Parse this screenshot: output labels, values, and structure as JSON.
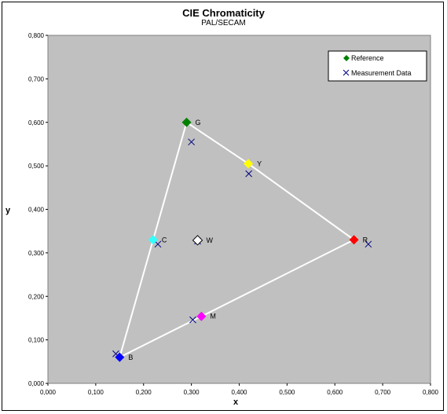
{
  "chart_data": {
    "type": "scatter",
    "title": "CIE Chromaticity",
    "subtitle": "PAL/SECAM",
    "xlabel": "x",
    "ylabel": "y",
    "xlim": [
      0,
      0.8
    ],
    "ylim": [
      0,
      0.8
    ],
    "xticks": [
      "0,000",
      "0,100",
      "0,200",
      "0,300",
      "0,400",
      "0,500",
      "0,600",
      "0,700",
      "0,800"
    ],
    "yticks": [
      "0,000",
      "0,100",
      "0,200",
      "0,300",
      "0,400",
      "0,500",
      "0,600",
      "0,700",
      "0,800"
    ],
    "grid": false,
    "plot_background": "#c0c0c0",
    "legend_position": "top-right",
    "triangle_line_color": "#ffffff",
    "series": [
      {
        "name": "Reference",
        "marker": "diamond",
        "legend_color": "#008000",
        "points": [
          {
            "label": "G",
            "x": 0.29,
            "y": 0.6,
            "color": "#008000"
          },
          {
            "label": "Y",
            "x": 0.419,
            "y": 0.505,
            "color": "#ffff00"
          },
          {
            "label": "R",
            "x": 0.64,
            "y": 0.33,
            "color": "#ff0000"
          },
          {
            "label": "C",
            "x": 0.22,
            "y": 0.33,
            "color": "#33ffff"
          },
          {
            "label": "W",
            "x": 0.313,
            "y": 0.329,
            "color": "#ffffff"
          },
          {
            "label": "M",
            "x": 0.321,
            "y": 0.154,
            "color": "#ff00ff"
          },
          {
            "label": "B",
            "x": 0.15,
            "y": 0.06,
            "color": "#0000ff"
          }
        ]
      },
      {
        "name": "Measurement Data",
        "marker": "x",
        "color": "#000080",
        "points": [
          {
            "x": 0.3,
            "y": 0.555
          },
          {
            "x": 0.42,
            "y": 0.482
          },
          {
            "x": 0.67,
            "y": 0.32
          },
          {
            "x": 0.23,
            "y": 0.32
          },
          {
            "x": 0.313,
            "y": 0.327
          },
          {
            "x": 0.303,
            "y": 0.146
          },
          {
            "x": 0.142,
            "y": 0.068
          }
        ]
      }
    ]
  }
}
